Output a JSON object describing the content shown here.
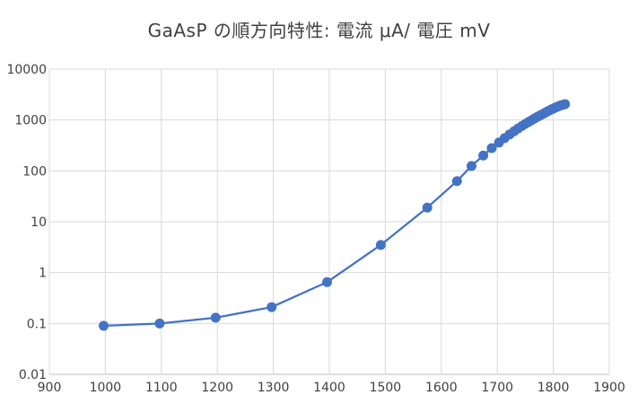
{
  "chart_data": {
    "type": "scatter",
    "title": "GaAsP の順方向特性: 電流 μA/ 電圧 mV",
    "xlabel": "",
    "ylabel": "",
    "xlim": [
      900,
      1900
    ],
    "ylim": [
      0.01,
      10000
    ],
    "y_scale": "log",
    "grid": true,
    "legend": "none",
    "x_ticks": [
      "900",
      "1000",
      "1100",
      "1200",
      "1300",
      "1400",
      "1500",
      "1600",
      "1700",
      "1800",
      "1900"
    ],
    "y_ticks": [
      "0.01",
      "0.1",
      "1",
      "10",
      "100",
      "1000",
      "10000"
    ],
    "colors": {
      "series": "#4472c4",
      "grid": "#d9d9d9",
      "axis": "#bfbfbf",
      "text": "#404040"
    },
    "series": [
      {
        "x": [
          997,
          1097,
          1197,
          1297,
          1396,
          1492,
          1575,
          1628,
          1654,
          1675,
          1690,
          1703,
          1713,
          1722,
          1730,
          1737,
          1744,
          1750,
          1756,
          1762,
          1767,
          1772,
          1777,
          1782,
          1786,
          1790,
          1794,
          1798,
          1802,
          1806,
          1810,
          1814,
          1818,
          1821
        ],
        "y": [
          0.09,
          0.1,
          0.13,
          0.21,
          0.65,
          3.5,
          19,
          63,
          125,
          200,
          280,
          360,
          440,
          520,
          600,
          680,
          760,
          840,
          920,
          1000,
          1080,
          1160,
          1240,
          1320,
          1400,
          1480,
          1560,
          1640,
          1720,
          1800,
          1880,
          1950,
          2000,
          2050
        ]
      }
    ]
  }
}
